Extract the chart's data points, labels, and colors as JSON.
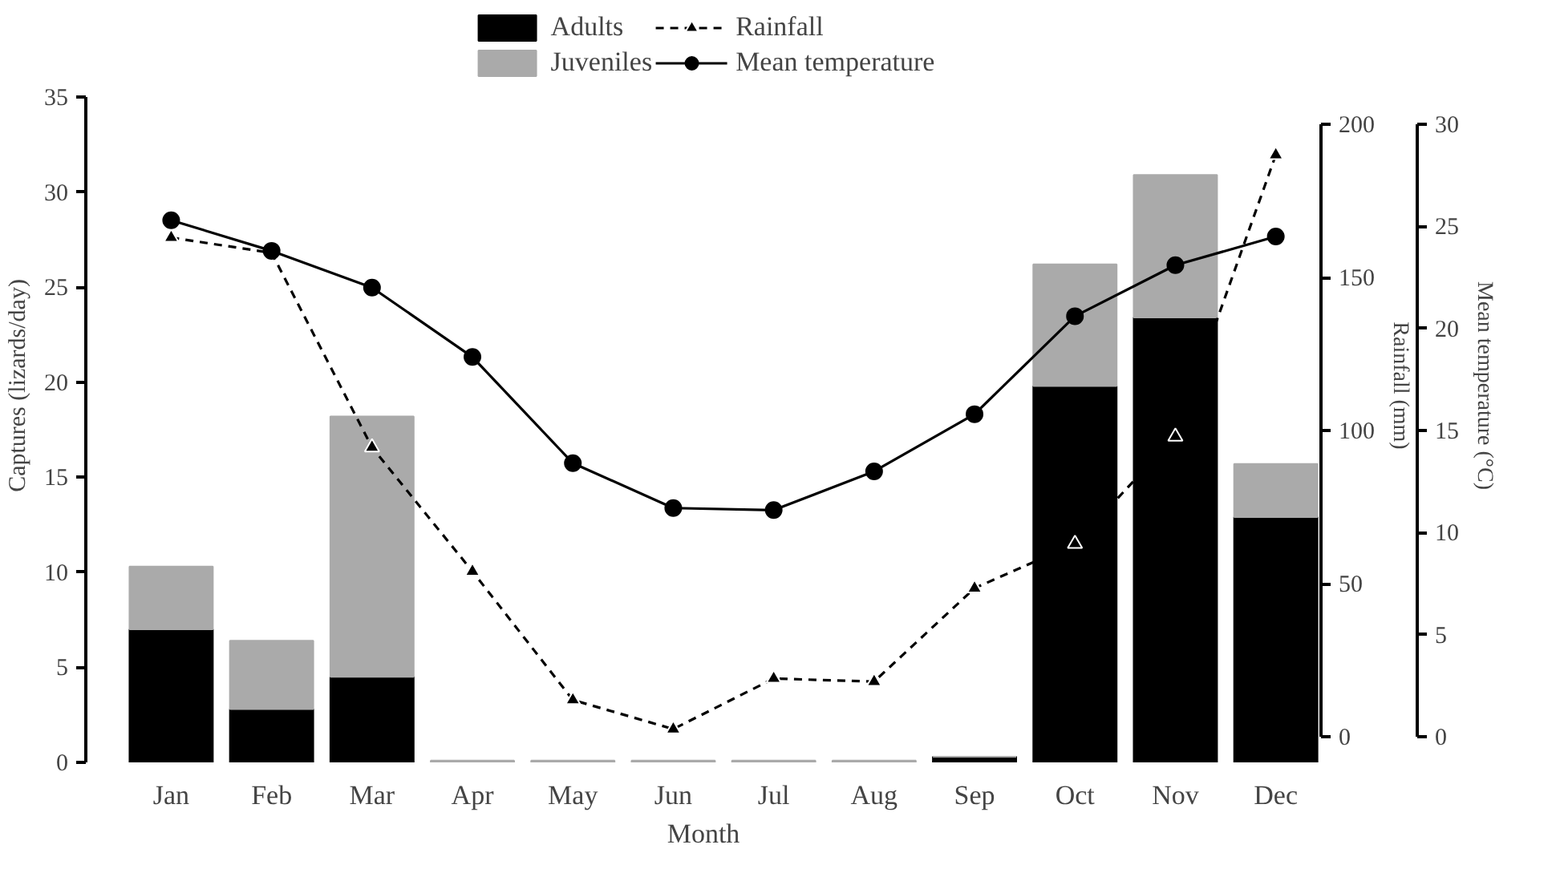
{
  "chart_data": {
    "type": "bar",
    "stacked": true,
    "xlabel": "Month",
    "ylabel": "Captures (lizards/day)",
    "y2label": "Rainfall (mm)",
    "y3label": "Mean temperature (°C)",
    "categories": [
      "Jan",
      "Feb",
      "Mar",
      "Apr",
      "May",
      "Jun",
      "Jul",
      "Aug",
      "Sep",
      "Oct",
      "Nov",
      "Dec"
    ],
    "series": [
      {
        "name": "Adults",
        "color": "#000000",
        "values": [
          7.0,
          2.8,
          4.5,
          0,
          0,
          0,
          0,
          0,
          0.3,
          19.8,
          23.4,
          12.9
        ]
      },
      {
        "name": "Juveniles",
        "color": "#aaaaaa",
        "values": [
          3.3,
          3.6,
          13.7,
          0.1,
          0.1,
          0.1,
          0.1,
          0.1,
          0,
          6.4,
          7.5,
          2.8
        ]
      },
      {
        "name": "Rainfall",
        "type": "line",
        "axis": "y2",
        "color": "#000000",
        "marker": "triangle",
        "line_style": "dashed",
        "values": [
          163,
          158,
          94.5,
          54,
          12,
          2.5,
          19,
          18,
          48.5,
          63,
          98,
          190
        ]
      },
      {
        "name": "Mean temperature",
        "type": "line",
        "axis": "y3",
        "color": "#000000",
        "marker": "circle",
        "line_style": "solid",
        "values": [
          25.3,
          23.8,
          22.0,
          18.6,
          13.4,
          11.2,
          11.1,
          13.0,
          15.8,
          20.6,
          23.1,
          24.5
        ]
      }
    ],
    "ylim": [
      0,
      35
    ],
    "yticks": [
      0,
      5,
      10,
      15,
      20,
      25,
      30,
      35
    ],
    "y2lim": [
      0,
      200
    ],
    "y2ticks": [
      0,
      50,
      100,
      150,
      200
    ],
    "y3lim": [
      0,
      30
    ],
    "y3ticks": [
      0,
      5,
      10,
      15,
      20,
      25,
      30
    ],
    "grid": false,
    "legend": "top"
  }
}
